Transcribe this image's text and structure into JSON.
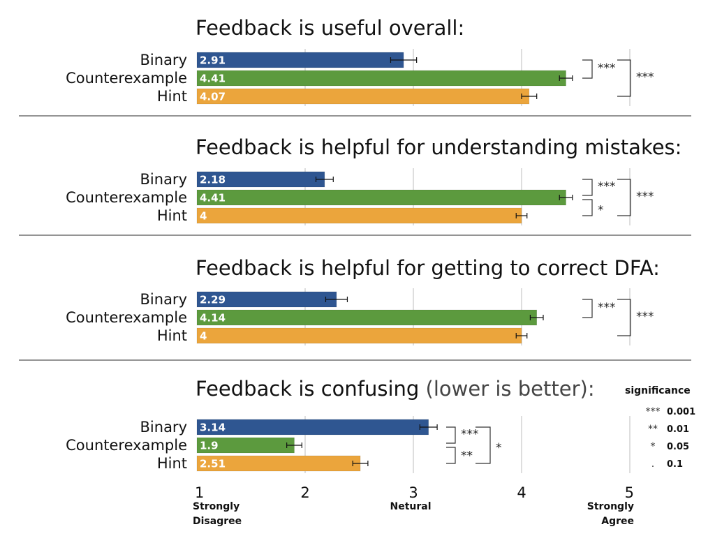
{
  "chart_data": {
    "type": "bar",
    "orientation": "horizontal",
    "xlim": [
      1,
      5
    ],
    "grid": true,
    "x_ticks": [
      {
        "value": 1,
        "label": "1",
        "sub": [
          "Strongly",
          "Disagree"
        ]
      },
      {
        "value": 2,
        "label": "2",
        "sub": []
      },
      {
        "value": 3,
        "label": "3",
        "sub": [
          "Netural"
        ]
      },
      {
        "value": 4,
        "label": "4",
        "sub": []
      },
      {
        "value": 5,
        "label": "5",
        "sub": [
          "Strongly",
          "Agree"
        ]
      }
    ],
    "categories": [
      "Binary",
      "Counterexample",
      "Hint"
    ],
    "colors": {
      "Binary": "#2f5691",
      "Counterexample": "#5c9a3e",
      "Hint": "#eba53c"
    },
    "panels": [
      {
        "title": "Feedback is useful overall:",
        "title_paren": "",
        "values": [
          2.91,
          4.41,
          4.07
        ],
        "value_labels": [
          "2.91",
          "4.41",
          "4.07"
        ],
        "errors": [
          0.12,
          0.06,
          0.07
        ],
        "significance": [
          {
            "from": "Binary",
            "to": "Counterexample",
            "label": "***"
          },
          {
            "from": "Binary",
            "to": "Hint",
            "label": "***"
          }
        ]
      },
      {
        "title": "Feedback is helpful for understanding mistakes:",
        "title_paren": "",
        "values": [
          2.18,
          4.41,
          4.0
        ],
        "value_labels": [
          "2.18",
          "4.41",
          "4"
        ],
        "errors": [
          0.08,
          0.06,
          0.05
        ],
        "significance": [
          {
            "from": "Binary",
            "to": "Counterexample",
            "label": "***"
          },
          {
            "from": "Counterexample",
            "to": "Hint",
            "label": "*"
          },
          {
            "from": "Binary",
            "to": "Hint",
            "label": "***"
          }
        ]
      },
      {
        "title": "Feedback is helpful for getting to correct DFA:",
        "title_paren": "",
        "values": [
          2.29,
          4.14,
          4.0
        ],
        "value_labels": [
          "2.29",
          "4.14",
          "4"
        ],
        "errors": [
          0.1,
          0.06,
          0.05
        ],
        "significance": [
          {
            "from": "Binary",
            "to": "Counterexample",
            "label": "***"
          },
          {
            "from": "Binary",
            "to": "Hint",
            "label": "***"
          }
        ]
      },
      {
        "title": "Feedback is confusing",
        "title_paren": "(lower is better):",
        "values": [
          3.14,
          1.9,
          2.51
        ],
        "value_labels": [
          "3.14",
          "1.9",
          "2.51"
        ],
        "errors": [
          0.08,
          0.07,
          0.07
        ],
        "significance": [
          {
            "from": "Binary",
            "to": "Counterexample",
            "label": "***"
          },
          {
            "from": "Counterexample",
            "to": "Hint",
            "label": "**"
          },
          {
            "from": "Binary",
            "to": "Hint",
            "label": "*"
          }
        ]
      }
    ],
    "legend": {
      "title": "significance",
      "placement": "bottom-right",
      "items": [
        {
          "symbol": "***",
          "value": "0.001"
        },
        {
          "symbol": "**",
          "value": "0.01"
        },
        {
          "symbol": "*",
          "value": "0.05"
        },
        {
          "symbol": ".",
          "value": "0.1"
        }
      ]
    }
  }
}
